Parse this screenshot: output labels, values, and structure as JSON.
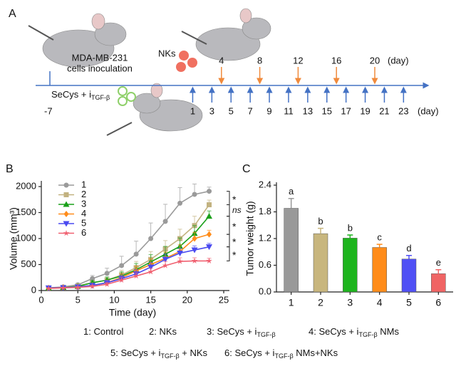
{
  "panel_a": {
    "label": "A",
    "inoculation": [
      "MDA-MB-231",
      "cells inoculation"
    ],
    "nk_label": "NKs",
    "start_day": "-7",
    "treatment": {
      "text": "SeCys + i",
      "sub": "TGF-β"
    },
    "nk_days": [
      4,
      8,
      12,
      16,
      20
    ],
    "treat_days": [
      1,
      3,
      5,
      7,
      9,
      11,
      13,
      15,
      17,
      19,
      21,
      23
    ],
    "day_unit": "(day)"
  },
  "chart_data": [
    {
      "type": "line",
      "panel": "B",
      "xlabel": "Time (day)",
      "ylabel": "Volume (mm³)",
      "xlim": [
        0,
        25
      ],
      "xticks": [
        0,
        5,
        10,
        15,
        20,
        25
      ],
      "ylim": [
        0,
        2000
      ],
      "yticks": [
        0,
        500,
        1000,
        1500,
        2000
      ],
      "legend": "upper left",
      "x": [
        1,
        3,
        5,
        7,
        9,
        11,
        13,
        15,
        17,
        19,
        21,
        23
      ],
      "series": [
        {
          "name": "1",
          "color": "#9a9a9a",
          "marker": "circle",
          "values": [
            50,
            70,
            110,
            230,
            330,
            480,
            700,
            1000,
            1330,
            1680,
            1850,
            1910
          ],
          "errors": [
            10,
            15,
            30,
            60,
            100,
            180,
            250,
            300,
            330,
            300,
            200,
            80
          ]
        },
        {
          "name": "2",
          "color": "#c2b280",
          "marker": "square",
          "values": [
            50,
            60,
            90,
            150,
            200,
            300,
            440,
            600,
            800,
            1000,
            1250,
            1650
          ],
          "errors": [
            10,
            12,
            25,
            40,
            60,
            90,
            120,
            150,
            160,
            180,
            180,
            90
          ]
        },
        {
          "name": "3",
          "color": "#1aa01a",
          "marker": "triangle",
          "values": [
            50,
            60,
            80,
            150,
            200,
            280,
            400,
            550,
            700,
            850,
            1100,
            1430
          ],
          "errors": [
            10,
            12,
            20,
            40,
            60,
            80,
            120,
            140,
            150,
            160,
            150,
            100
          ]
        },
        {
          "name": "4",
          "color": "#ff8c1a",
          "marker": "diamond",
          "values": [
            50,
            60,
            70,
            100,
            150,
            250,
            380,
            500,
            620,
            750,
            1000,
            1080
          ],
          "errors": [
            10,
            10,
            15,
            30,
            50,
            70,
            90,
            110,
            120,
            130,
            120,
            80
          ]
        },
        {
          "name": "5",
          "color": "#4a4af0",
          "marker": "triangle-down",
          "values": [
            50,
            55,
            70,
            100,
            150,
            230,
            320,
            450,
            600,
            720,
            780,
            840
          ],
          "errors": [
            10,
            10,
            15,
            25,
            40,
            60,
            80,
            90,
            100,
            90,
            80,
            70
          ]
        },
        {
          "name": "6",
          "color": "#f06070",
          "marker": "star",
          "values": [
            40,
            50,
            60,
            80,
            120,
            200,
            280,
            360,
            480,
            560,
            570,
            570
          ],
          "errors": [
            8,
            10,
            12,
            20,
            30,
            50,
            60,
            70,
            80,
            70,
            60,
            50
          ]
        }
      ],
      "annotations": [
        "*",
        "ns",
        "*",
        "*",
        "*"
      ]
    },
    {
      "type": "bar",
      "panel": "C",
      "ylabel": "Tumor weight (g)",
      "categories": [
        "1",
        "2",
        "3",
        "4",
        "5",
        "6"
      ],
      "values": [
        1.88,
        1.31,
        1.21,
        1.0,
        0.74,
        0.41
      ],
      "errors": [
        0.22,
        0.12,
        0.07,
        0.07,
        0.08,
        0.09
      ],
      "letters": [
        "a",
        "b",
        "b",
        "c",
        "d",
        "e"
      ],
      "colors": [
        "#999999",
        "#c8b67e",
        "#1db41d",
        "#ff8c1a",
        "#5050f5",
        "#f06464"
      ],
      "ylim": [
        0,
        2.4
      ],
      "yticks": [
        {
          "value": 0,
          "label": "0.0"
        },
        0.6,
        1.2,
        1.8,
        2.4
      ]
    }
  ],
  "legend_text": [
    {
      "text": "1: Control"
    },
    {
      "text": "2: NKs"
    },
    {
      "text": "3: SeCys + i",
      "sub": "TGF-β",
      "tail": ""
    },
    {
      "text": "4: SeCys + i",
      "sub": "TGF-β",
      "tail": " NMs"
    },
    {
      "text": "5: SeCys + i",
      "sub": "TGF-β",
      "tail": " + NKs"
    },
    {
      "text": "6: SeCys + i",
      "sub": "TGF-β",
      "tail": " NMs+NKs"
    }
  ]
}
